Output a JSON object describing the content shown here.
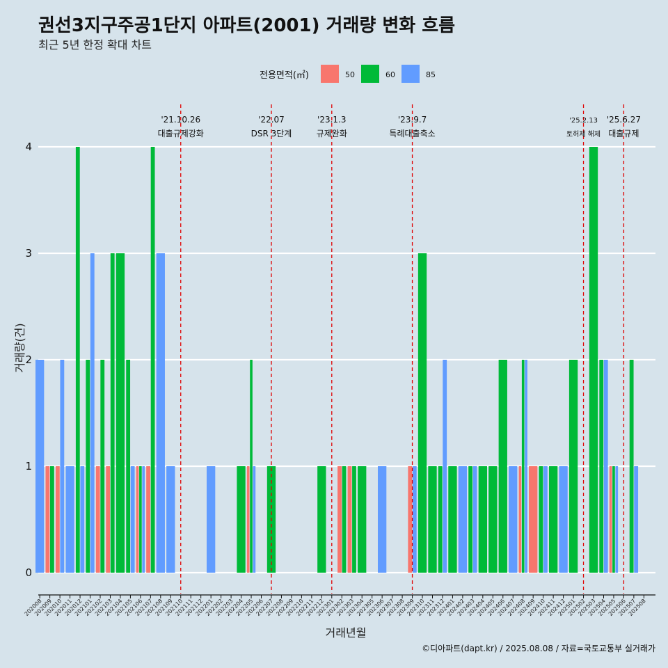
{
  "chart_data": {
    "type": "bar",
    "title": "권선3지구주공1단지 아파트(2001) 거래량 변화 흐름",
    "subtitle": "최근 5년 한정 확대 차트",
    "xlabel": "거래년월",
    "ylabel": "거래량(건)",
    "ylim": [
      0,
      4
    ],
    "yticks": [
      0,
      1,
      2,
      3,
      4
    ],
    "grid": "horizontal",
    "legend": {
      "title": "전용면적(㎡)",
      "position": "top",
      "items": [
        {
          "name": "50",
          "color": "#f8766d"
        },
        {
          "name": "60",
          "color": "#00ba38"
        },
        {
          "name": "85",
          "color": "#619cff"
        }
      ]
    },
    "categories": [
      "202008",
      "202009",
      "202010",
      "202011",
      "202012",
      "202101",
      "202102",
      "202103",
      "202104",
      "202105",
      "202106",
      "202107",
      "202108",
      "202109",
      "202110",
      "202111",
      "202112",
      "202201",
      "202202",
      "202203",
      "202204",
      "202205",
      "202206",
      "202207",
      "202208",
      "202209",
      "202210",
      "202211",
      "202212",
      "202301",
      "202302",
      "202303",
      "202304",
      "202305",
      "202306",
      "202307",
      "202308",
      "202309",
      "202310",
      "202311",
      "202312",
      "202401",
      "202402",
      "202403",
      "202404",
      "202405",
      "202406",
      "202407",
      "202408",
      "202409",
      "202410",
      "202411",
      "202412",
      "202501",
      "202502",
      "202503",
      "202504",
      "202505",
      "202506",
      "202507",
      "202508"
    ],
    "series": [
      {
        "name": "50",
        "values": [
          0,
          1,
          1,
          0,
          0,
          0,
          1,
          1,
          0,
          0,
          1,
          1,
          0,
          0,
          0,
          0,
          0,
          0,
          0,
          0,
          0,
          1,
          0,
          0,
          0,
          0,
          0,
          0,
          0,
          0,
          1,
          1,
          0,
          0,
          0,
          0,
          0,
          1,
          0,
          0,
          0,
          0,
          0,
          0,
          0,
          0,
          0,
          0,
          1,
          1,
          0,
          0,
          0,
          0,
          0,
          0,
          0,
          1,
          0,
          0,
          0
        ]
      },
      {
        "name": "60",
        "values": [
          0,
          1,
          0,
          0,
          4,
          2,
          2,
          3,
          3,
          2,
          1,
          4,
          0,
          0,
          0,
          0,
          0,
          0,
          0,
          0,
          1,
          2,
          0,
          1,
          0,
          0,
          0,
          0,
          1,
          0,
          1,
          1,
          1,
          0,
          0,
          0,
          0,
          0,
          3,
          1,
          1,
          1,
          0,
          1,
          1,
          1,
          2,
          0,
          2,
          0,
          1,
          1,
          0,
          2,
          0,
          4,
          2,
          1,
          0,
          2,
          0
        ]
      },
      {
        "name": "85",
        "values": [
          2,
          0,
          2,
          1,
          1,
          3,
          0,
          0,
          0,
          1,
          1,
          0,
          3,
          1,
          0,
          0,
          0,
          1,
          0,
          0,
          0,
          1,
          0,
          0,
          0,
          0,
          0,
          0,
          0,
          0,
          0,
          0,
          0,
          0,
          1,
          0,
          0,
          1,
          0,
          0,
          2,
          0,
          1,
          1,
          0,
          0,
          0,
          1,
          2,
          0,
          1,
          0,
          1,
          0,
          0,
          0,
          2,
          1,
          0,
          1,
          0
        ]
      }
    ],
    "annotations": [
      {
        "index": 14,
        "date": "'21.10.26",
        "label": "대출규제강화"
      },
      {
        "index": 23,
        "date": "'22.07",
        "label": "DSR 3단계"
      },
      {
        "index": 29,
        "date": "'23.1.3",
        "label": "규제완화"
      },
      {
        "index": 37,
        "date": "'23.9.7",
        "label": "특례대출축소"
      },
      {
        "index": 54,
        "date": "'25.2.13",
        "label": "토허제 해제"
      },
      {
        "index": 58,
        "date": "'25.6.27",
        "label": "대출규제"
      }
    ],
    "caption": "©디아파트(dapt.kr) / 2025.08.08 / 자료=국토교통부 실거래가"
  }
}
